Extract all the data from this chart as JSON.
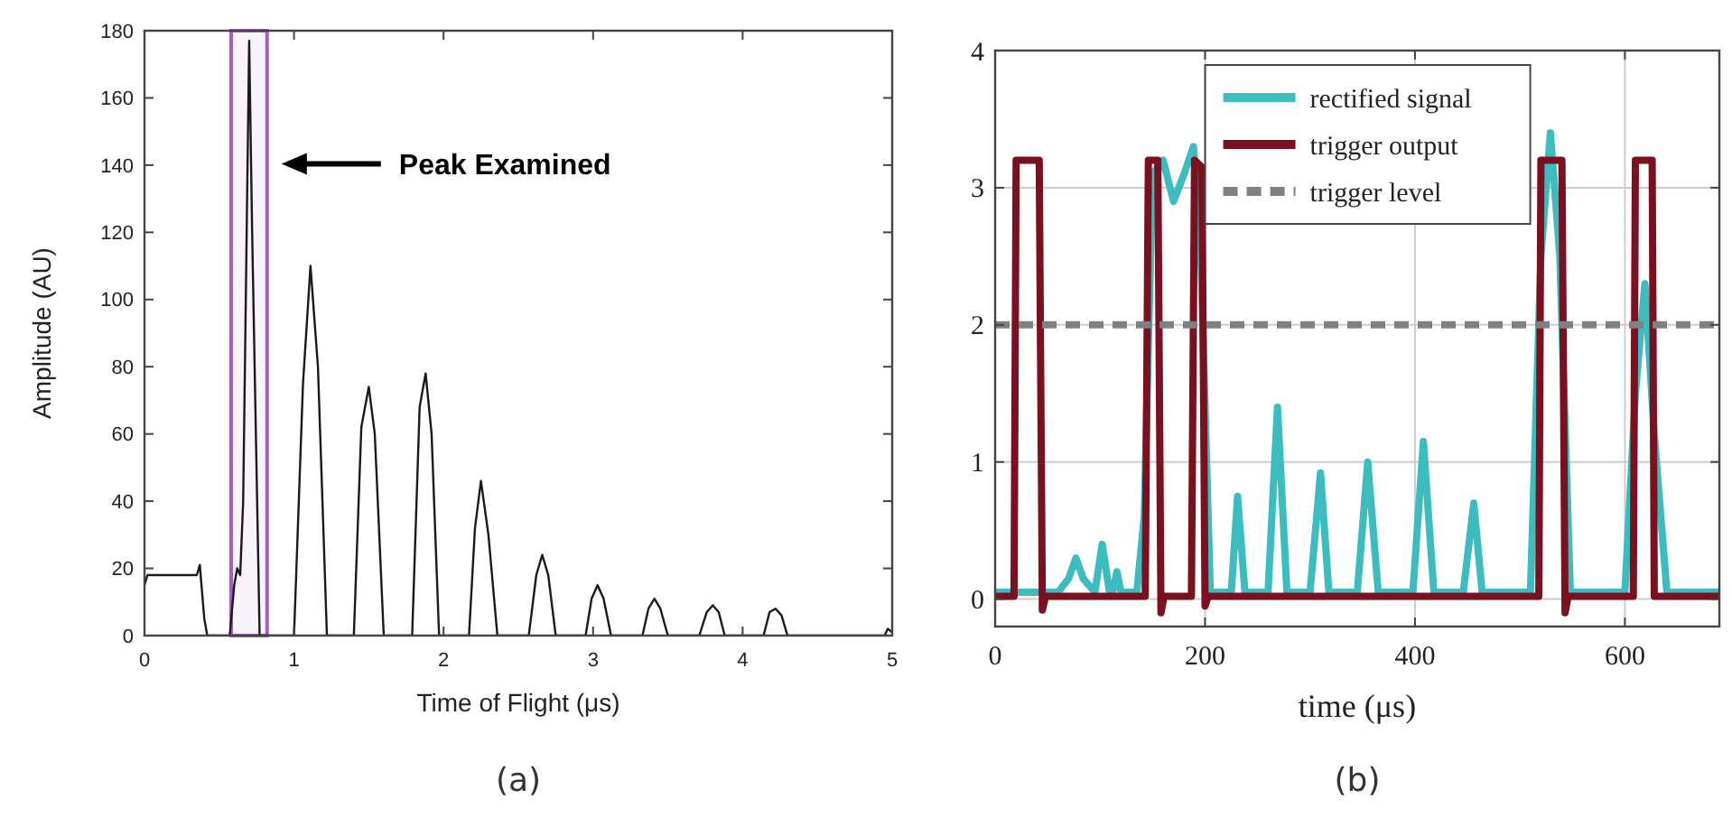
{
  "chart_data": [
    {
      "type": "line",
      "xlabel": "Time of Flight (μs)",
      "ylabel": "Amplitude (AU)",
      "xlim": [
        0,
        5
      ],
      "ylim": [
        0,
        180
      ],
      "xticks": [
        0,
        1,
        2,
        3,
        4,
        5
      ],
      "yticks": [
        0,
        20,
        40,
        60,
        80,
        100,
        120,
        140,
        160,
        180
      ],
      "grid": false,
      "legend": false,
      "series": [
        {
          "color": "#1a1a1a",
          "x": [
            0,
            0.02,
            0.35,
            0.37,
            0.4,
            0.42,
            0.57,
            0.6,
            0.62,
            0.64,
            0.66,
            0.7,
            0.72,
            0.77,
            1.0,
            1.06,
            1.11,
            1.16,
            1.22,
            1.4,
            1.45,
            1.5,
            1.54,
            1.6,
            1.79,
            1.84,
            1.88,
            1.92,
            1.97,
            2.17,
            2.21,
            2.25,
            2.3,
            2.36,
            2.57,
            2.62,
            2.66,
            2.7,
            2.75,
            2.95,
            2.99,
            3.03,
            3.07,
            3.12,
            3.33,
            3.37,
            3.41,
            3.45,
            3.5,
            3.71,
            3.76,
            3.8,
            3.84,
            3.88,
            4.14,
            4.18,
            4.22,
            4.26,
            4.3,
            4.95,
            4.97,
            5
          ],
          "values": [
            15,
            18,
            18,
            21,
            5,
            0,
            0,
            15,
            20,
            18,
            40,
            177,
            120,
            0,
            0,
            75,
            110,
            80,
            0,
            0,
            62,
            74,
            60,
            0,
            0,
            68,
            78,
            60,
            0,
            0,
            32,
            46,
            30,
            0,
            0,
            18,
            24,
            18,
            0,
            0,
            11,
            15,
            11,
            0,
            0,
            8,
            11,
            8,
            0,
            0,
            7,
            9,
            7,
            0,
            0,
            7,
            8,
            6,
            0,
            0,
            2,
            1
          ]
        }
      ],
      "bands": [
        {
          "axis": "x",
          "from": 0.58,
          "to": 0.82,
          "color": "#a35cc9"
        }
      ],
      "annotations": [
        "Peak Examined",
        "(a)"
      ]
    },
    {
      "type": "line",
      "xlabel": "time (μs)",
      "xlim": [
        0,
        690
      ],
      "ylim": [
        -0.2,
        4
      ],
      "xticks": [
        0,
        200,
        400,
        600
      ],
      "yticks": [
        0,
        1,
        2,
        3,
        4
      ],
      "grid": true,
      "legend": "top",
      "series": [
        {
          "name": "rectified signal",
          "color": "#3bbcbf",
          "x": [
            0,
            60,
            70,
            77,
            84,
            95,
            102,
            109,
            112,
            116,
            120,
            135,
            142,
            150,
            160,
            170,
            180,
            189,
            196,
            205,
            215,
            225,
            231,
            238,
            250,
            260,
            269,
            278,
            290,
            300,
            310,
            318,
            330,
            345,
            355,
            365,
            378,
            398,
            408,
            418,
            430,
            446,
            456,
            464,
            475,
            510,
            520,
            529,
            538,
            548,
            600,
            610,
            619,
            628,
            640,
            690
          ],
          "values": [
            0.05,
            0.05,
            0.15,
            0.3,
            0.15,
            0.05,
            0.4,
            0.05,
            0.05,
            0.2,
            0.05,
            0.05,
            0.6,
            3.1,
            3.2,
            2.9,
            3.1,
            3.3,
            2.5,
            0.05,
            0.05,
            0.05,
            0.75,
            0.05,
            0.05,
            0.05,
            1.4,
            0.05,
            0.05,
            0.05,
            0.92,
            0.05,
            0.05,
            0.05,
            1.0,
            0.05,
            0.05,
            0.05,
            1.15,
            0.05,
            0.05,
            0.05,
            0.7,
            0.05,
            0.05,
            0.05,
            2.5,
            3.4,
            2.5,
            0.05,
            0.05,
            1.5,
            2.3,
            1.2,
            0.05,
            0.05
          ]
        },
        {
          "name": "trigger output",
          "color": "#7b1020",
          "x": [
            0,
            18,
            20,
            42,
            45,
            48,
            143,
            146,
            155,
            158,
            161,
            187,
            190,
            197,
            200,
            203,
            518,
            520,
            540,
            543,
            546,
            608,
            610,
            626,
            628,
            631,
            690
          ],
          "values": [
            0.02,
            0.02,
            3.2,
            3.2,
            -0.08,
            0.02,
            0.02,
            3.2,
            3.2,
            -0.1,
            0.02,
            0.02,
            3.2,
            3.15,
            -0.05,
            0.02,
            0.02,
            3.2,
            3.2,
            -0.1,
            0.02,
            0.02,
            3.2,
            3.2,
            0.02,
            0.02,
            0.02
          ]
        },
        {
          "name": "trigger level",
          "color": "#808080",
          "line_style": "dashed",
          "x": [
            0,
            690
          ],
          "values": [
            2,
            2
          ]
        }
      ],
      "annotations": [
        "(b)"
      ]
    }
  ]
}
